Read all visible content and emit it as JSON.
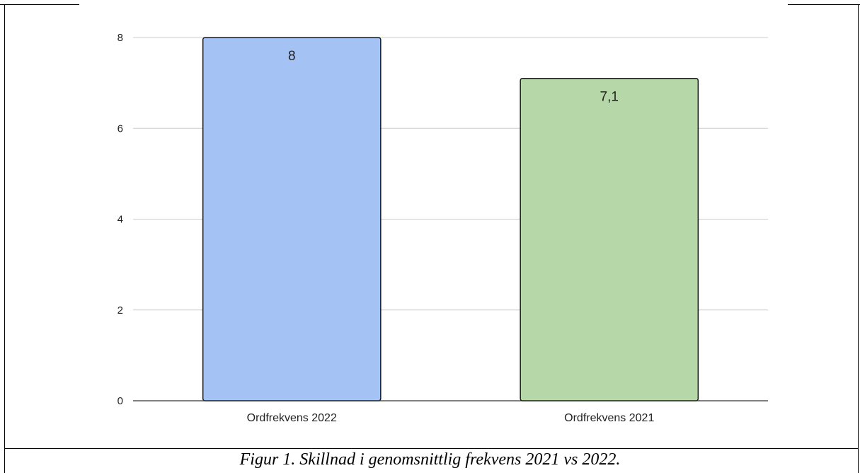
{
  "caption": "Figur 1. Skillnad i genomsnittlig frekvens 2021 vs 2022.",
  "chart_data": {
    "type": "bar",
    "title": "",
    "xlabel": "",
    "ylabel": "",
    "categories": [
      "Ordfrekvens 2022",
      "Ordfrekvens 2021"
    ],
    "values": [
      8,
      7.1
    ],
    "value_labels": [
      "8",
      "7,1"
    ],
    "ylim": [
      0,
      8
    ],
    "yticks": [
      0,
      2,
      4,
      6,
      8
    ],
    "ytick_labels": [
      "0",
      "2",
      "4",
      "6",
      "8"
    ],
    "grid": true,
    "legend": "none",
    "colors": [
      "#a4c2f4",
      "#b6d7a8"
    ],
    "outline_color": "#1a1a1a",
    "grid_color": "#cccccc"
  }
}
